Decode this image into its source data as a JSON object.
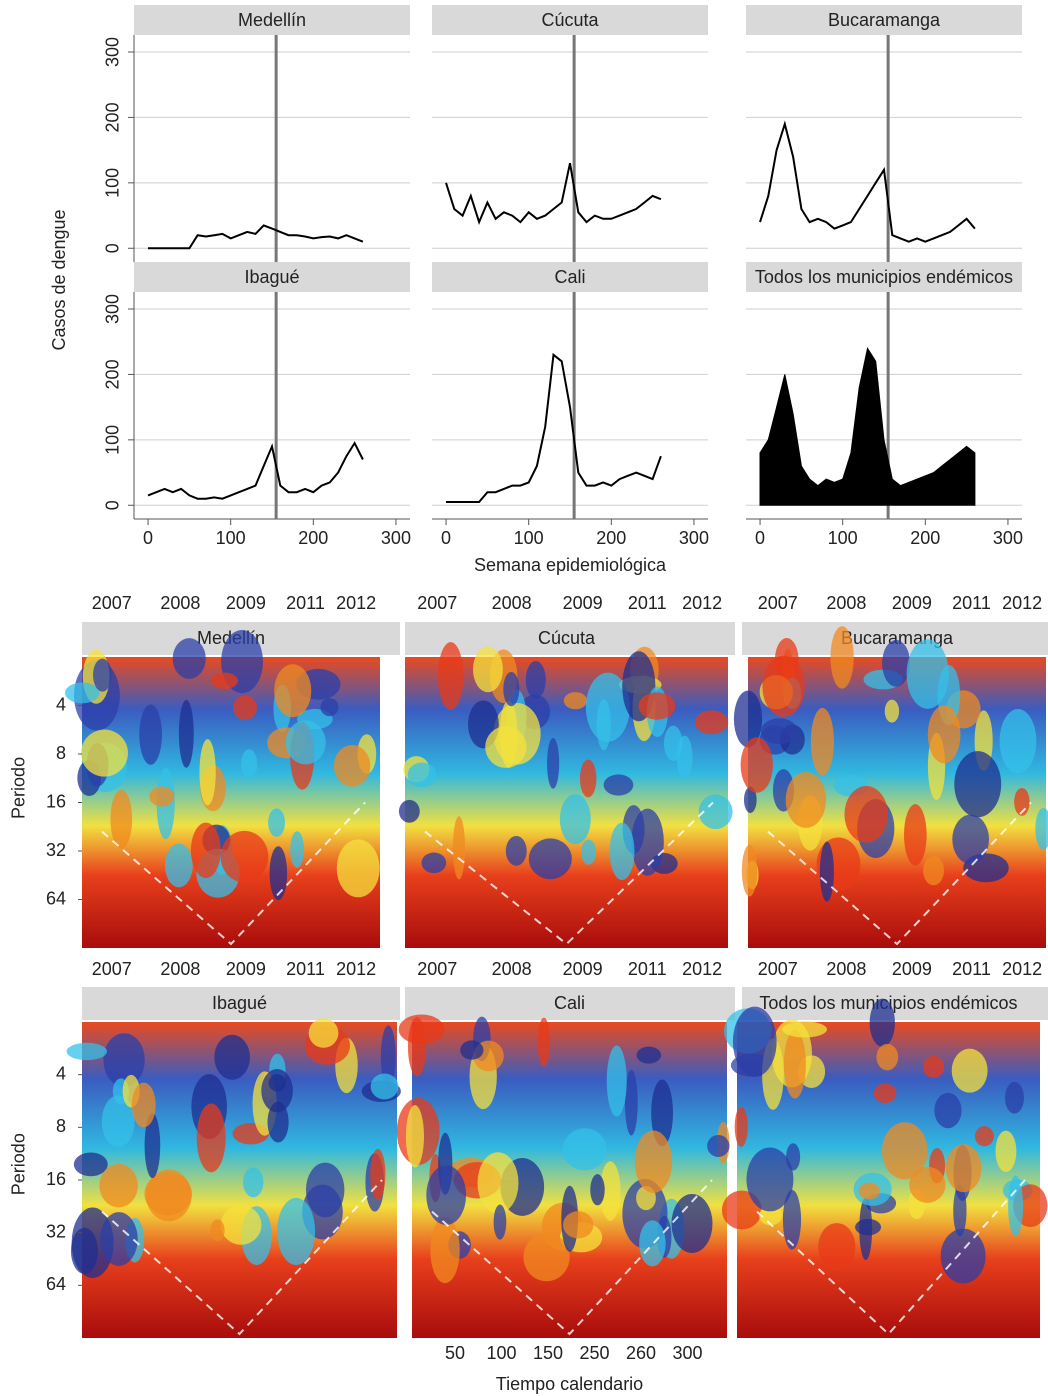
{
  "chart_data": [
    {
      "type": "line",
      "title": "Medellín",
      "ylabel": "Casos de dengue",
      "color": "#000000",
      "marker_x": 155,
      "xlim": [
        -17,
        317
      ],
      "xticks": [
        0,
        100,
        200,
        300
      ],
      "ylim": [
        -21,
        326
      ],
      "yticks": [
        0,
        100,
        200,
        300
      ],
      "x": [
        0,
        10,
        20,
        30,
        40,
        50,
        60,
        70,
        80,
        90,
        100,
        110,
        120,
        130,
        140,
        150,
        160,
        170,
        180,
        190,
        200,
        210,
        220,
        230,
        240,
        250,
        260
      ],
      "values": [
        0,
        0,
        0,
        0,
        0,
        0,
        20,
        18,
        20,
        22,
        15,
        20,
        25,
        22,
        35,
        30,
        25,
        20,
        20,
        18,
        15,
        17,
        18,
        15,
        20,
        15,
        10
      ]
    },
    {
      "type": "line",
      "title": "Cúcuta",
      "color": "#000000",
      "marker_x": 155,
      "xlim": [
        -17,
        317
      ],
      "xticks": [
        0,
        100,
        200,
        300
      ],
      "ylim": [
        -21,
        326
      ],
      "yticks": [
        0,
        100,
        200,
        300
      ],
      "x": [
        0,
        10,
        20,
        30,
        40,
        50,
        60,
        70,
        80,
        90,
        100,
        110,
        120,
        130,
        140,
        150,
        160,
        170,
        180,
        190,
        200,
        210,
        220,
        230,
        240,
        250,
        260
      ],
      "values": [
        100,
        60,
        50,
        80,
        40,
        70,
        45,
        55,
        50,
        40,
        55,
        45,
        50,
        60,
        70,
        130,
        55,
        40,
        50,
        45,
        45,
        50,
        55,
        60,
        70,
        80,
        75
      ]
    },
    {
      "type": "line",
      "title": "Bucaramanga",
      "color": "#000000",
      "marker_x": 155,
      "xlim": [
        -17,
        317
      ],
      "xticks": [
        0,
        100,
        200,
        300
      ],
      "ylim": [
        -21,
        326
      ],
      "yticks": [
        0,
        100,
        200,
        300
      ],
      "x": [
        0,
        10,
        20,
        30,
        40,
        50,
        60,
        70,
        80,
        90,
        100,
        110,
        120,
        130,
        140,
        150,
        160,
        170,
        180,
        190,
        200,
        210,
        220,
        230,
        240,
        250,
        260
      ],
      "values": [
        40,
        80,
        150,
        190,
        140,
        60,
        40,
        45,
        40,
        30,
        35,
        40,
        60,
        80,
        100,
        120,
        20,
        15,
        10,
        15,
        10,
        15,
        20,
        25,
        35,
        45,
        30
      ]
    },
    {
      "type": "line",
      "title": "Ibagué",
      "color": "#000000",
      "marker_x": 155,
      "xlim": [
        -17,
        317
      ],
      "xticks": [
        0,
        100,
        200,
        300
      ],
      "ylim": [
        -21,
        326
      ],
      "yticks": [
        0,
        100,
        200,
        300
      ],
      "x": [
        0,
        10,
        20,
        30,
        40,
        50,
        60,
        70,
        80,
        90,
        100,
        110,
        120,
        130,
        140,
        150,
        160,
        170,
        180,
        190,
        200,
        210,
        220,
        230,
        240,
        250,
        260
      ],
      "values": [
        15,
        20,
        25,
        20,
        25,
        15,
        10,
        10,
        12,
        10,
        15,
        20,
        25,
        30,
        60,
        90,
        30,
        20,
        20,
        25,
        20,
        30,
        35,
        50,
        75,
        95,
        70
      ]
    },
    {
      "type": "line",
      "title": "Cali",
      "xlabel": "Semana epidemiológica",
      "color": "#000000",
      "marker_x": 155,
      "xlim": [
        -17,
        317
      ],
      "xticks": [
        0,
        100,
        200,
        300
      ],
      "ylim": [
        -21,
        326
      ],
      "yticks": [
        0,
        100,
        200,
        300
      ],
      "x": [
        0,
        10,
        20,
        30,
        40,
        50,
        60,
        70,
        80,
        90,
        100,
        110,
        120,
        130,
        140,
        150,
        160,
        170,
        180,
        190,
        200,
        210,
        220,
        230,
        240,
        250,
        260
      ],
      "values": [
        5,
        5,
        5,
        5,
        5,
        20,
        20,
        25,
        30,
        30,
        35,
        60,
        120,
        230,
        220,
        150,
        50,
        30,
        30,
        35,
        30,
        40,
        45,
        50,
        45,
        40,
        75
      ]
    },
    {
      "type": "area",
      "title": "Todos los municipios endémicos",
      "color": "#000000",
      "marker_x": 155,
      "xlim": [
        -17,
        317
      ],
      "xticks": [
        0,
        100,
        200,
        300
      ],
      "ylim": [
        -21,
        326
      ],
      "yticks": [
        0,
        100,
        200,
        300
      ],
      "x": [
        0,
        10,
        20,
        30,
        40,
        50,
        60,
        70,
        80,
        90,
        100,
        110,
        120,
        130,
        140,
        150,
        160,
        170,
        180,
        190,
        200,
        210,
        220,
        230,
        240,
        250,
        260
      ],
      "values": [
        80,
        100,
        150,
        200,
        140,
        60,
        40,
        30,
        40,
        35,
        40,
        80,
        180,
        240,
        220,
        100,
        40,
        30,
        35,
        40,
        45,
        50,
        60,
        70,
        80,
        90,
        80
      ]
    },
    {
      "type": "heatmap",
      "title": "Medellín",
      "ylabel": "Periodo",
      "year_labels": [
        "2007",
        "2008",
        "2009",
        "2011",
        "2012"
      ],
      "log_scale": true,
      "ylim": [
        2,
        128
      ],
      "yticks": [
        4,
        8,
        16,
        32,
        64
      ]
    },
    {
      "type": "heatmap",
      "title": "Cúcuta",
      "year_labels": [
        "2007",
        "2008",
        "2009",
        "2011",
        "2012"
      ],
      "log_scale": true,
      "ylim": [
        2,
        128
      ],
      "yticks": [
        4,
        8,
        16,
        32,
        64
      ]
    },
    {
      "type": "heatmap",
      "title": "Bucaramanga",
      "year_labels": [
        "2007",
        "2008",
        "2009",
        "2011",
        "2012"
      ],
      "log_scale": true,
      "ylim": [
        2,
        128
      ],
      "yticks": [
        4,
        8,
        16,
        32,
        64
      ]
    },
    {
      "type": "heatmap",
      "title": "Ibagué",
      "ylabel": "Periodo",
      "year_labels": [
        "2007",
        "2008",
        "2009",
        "2011",
        "2012"
      ],
      "log_scale": true,
      "ylim": [
        2,
        128
      ],
      "yticks": [
        4,
        8,
        16,
        32,
        64
      ]
    },
    {
      "type": "heatmap",
      "title": "Cali",
      "xlabel": "Tiempo calendario",
      "xticks": [
        50,
        100,
        150,
        250,
        260,
        300
      ],
      "year_labels": [
        "2007",
        "2008",
        "2009",
        "2011",
        "2012"
      ],
      "log_scale": true,
      "ylim": [
        2,
        128
      ],
      "yticks": [
        4,
        8,
        16,
        32,
        64
      ]
    },
    {
      "type": "heatmap",
      "title": "Todos los municipios endémicos",
      "year_labels": [
        "2007",
        "2008",
        "2009",
        "2011",
        "2012"
      ],
      "log_scale": true,
      "ylim": [
        2,
        128
      ],
      "yticks": [
        4,
        8,
        16,
        32,
        64
      ]
    }
  ]
}
